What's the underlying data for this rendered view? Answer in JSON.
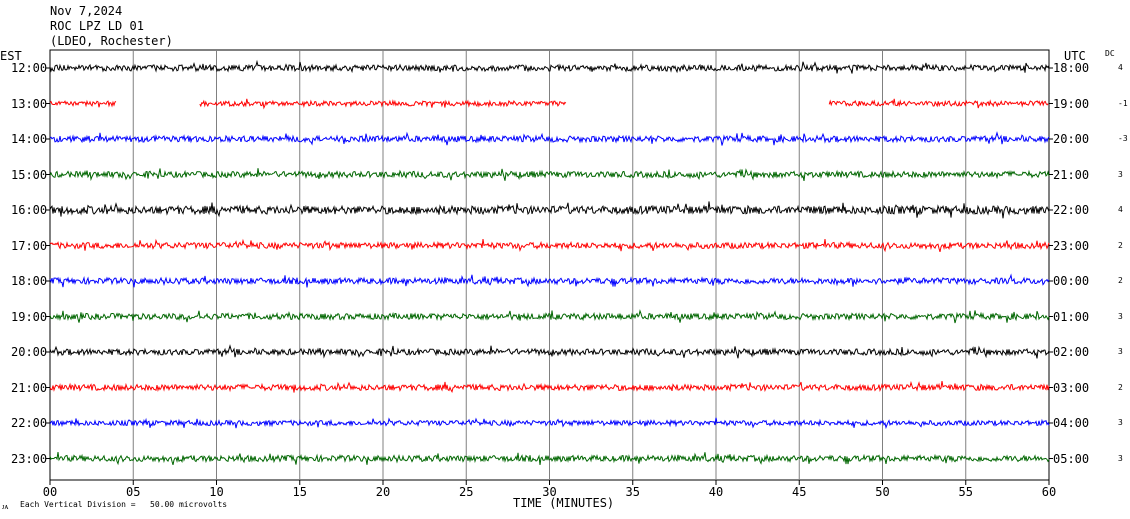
{
  "header": {
    "date": "Nov 7,2024",
    "station": "ROC LPZ LD 01",
    "network": "(LDEO, Rochester)"
  },
  "left_tz": "EST",
  "right_tz": "UTC",
  "dc_label": "DC",
  "footer_mark": "ᴊᴀ",
  "footer_note": "Each Vertical Division =   50.00 microvolts",
  "colors": {
    "black": "#000000",
    "red": "#ff0000",
    "blue": "#0000ff",
    "green": "#006600"
  },
  "chart_data": {
    "type": "line",
    "title": "",
    "xlabel": "TIME (MINUTES)",
    "xlim": [
      0,
      60
    ],
    "x_ticks": [
      "00",
      "05",
      "10",
      "15",
      "20",
      "25",
      "30",
      "35",
      "40",
      "45",
      "50",
      "55",
      "60"
    ],
    "grid": true,
    "rows": [
      {
        "est": "12:00",
        "utc": "18:00",
        "dc": "4",
        "color": "black",
        "amp": 3,
        "segments": [
          [
            0,
            60
          ]
        ]
      },
      {
        "est": "13:00",
        "utc": "19:00",
        "dc": "-1",
        "color": "red",
        "amp": 2.5,
        "segments": [
          [
            0,
            4
          ],
          [
            9,
            31
          ],
          [
            46.8,
            60
          ]
        ]
      },
      {
        "est": "14:00",
        "utc": "20:00",
        "dc": "-3",
        "color": "blue",
        "amp": 3,
        "segments": [
          [
            0,
            60
          ]
        ]
      },
      {
        "est": "15:00",
        "utc": "21:00",
        "dc": "3",
        "color": "green",
        "amp": 3,
        "segments": [
          [
            0,
            60
          ]
        ]
      },
      {
        "est": "16:00",
        "utc": "22:00",
        "dc": "4",
        "color": "black",
        "amp": 4,
        "segments": [
          [
            0,
            60
          ]
        ]
      },
      {
        "est": "17:00",
        "utc": "23:00",
        "dc": "2",
        "color": "red",
        "amp": 3,
        "segments": [
          [
            0,
            60
          ]
        ]
      },
      {
        "est": "18:00",
        "utc": "00:00",
        "dc": "2",
        "color": "blue",
        "amp": 3,
        "segments": [
          [
            0,
            60
          ]
        ]
      },
      {
        "est": "19:00",
        "utc": "01:00",
        "dc": "3",
        "color": "green",
        "amp": 3,
        "segments": [
          [
            0,
            60
          ]
        ]
      },
      {
        "est": "20:00",
        "utc": "02:00",
        "dc": "3",
        "color": "black",
        "amp": 3,
        "segments": [
          [
            0,
            60
          ]
        ]
      },
      {
        "est": "21:00",
        "utc": "03:00",
        "dc": "2",
        "color": "red",
        "amp": 3,
        "segments": [
          [
            0,
            60
          ]
        ]
      },
      {
        "est": "22:00",
        "utc": "04:00",
        "dc": "3",
        "color": "blue",
        "amp": 2.5,
        "segments": [
          [
            0,
            60
          ]
        ]
      },
      {
        "est": "23:00",
        "utc": "05:00",
        "dc": "3",
        "color": "green",
        "amp": 3,
        "segments": [
          [
            0,
            60
          ]
        ]
      }
    ]
  }
}
